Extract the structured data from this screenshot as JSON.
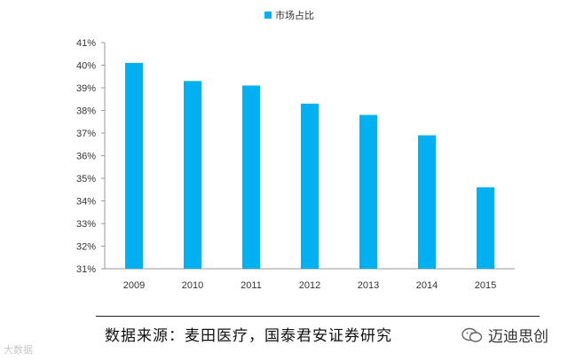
{
  "chart_data": {
    "type": "bar",
    "legend": [
      "市场占比"
    ],
    "legend_position": "top-center",
    "categories": [
      "2009",
      "2010",
      "2011",
      "2012",
      "2013",
      "2014",
      "2015"
    ],
    "series": [
      {
        "name": "市场占比",
        "values": [
          40.1,
          39.3,
          39.1,
          38.3,
          37.8,
          36.9,
          34.6
        ],
        "color": "#00b0f0"
      }
    ],
    "ylim": [
      31,
      41
    ],
    "yticks": [
      "31%",
      "32%",
      "33%",
      "34%",
      "35%",
      "36%",
      "37%",
      "38%",
      "39%",
      "40%",
      "41%"
    ],
    "grid": false
  },
  "footer": {
    "source": "数据来源：麦田医疗，国泰君安证券研究",
    "brand": "迈迪思创",
    "watermark": "大数据"
  },
  "colors": {
    "bar": "#00b0f0",
    "axis": "#999999"
  }
}
